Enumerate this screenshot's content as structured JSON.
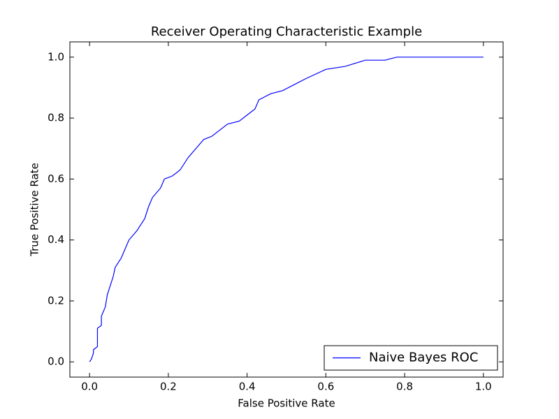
{
  "chart_data": {
    "type": "line",
    "title": "Receiver Operating Characteristic Example",
    "xlabel": "False Positive Rate",
    "ylabel": "True Positive Rate",
    "xlim": [
      -0.05,
      1.05
    ],
    "ylim": [
      -0.05,
      1.05
    ],
    "xticks": [
      {
        "value": 0,
        "label": "0.0"
      },
      0.2,
      0.4,
      0.6,
      0.8,
      {
        "value": 1,
        "label": "1.0"
      }
    ],
    "yticks": [
      {
        "value": 0,
        "label": "0.0"
      },
      0.2,
      0.4,
      0.6,
      0.8,
      {
        "value": 1,
        "label": "1.0"
      }
    ],
    "legend": "lower right",
    "series": [
      {
        "name": "Naive Bayes ROC",
        "color": "#0000ff",
        "x": [
          0,
          0.005,
          0.01,
          0.01,
          0.02,
          0.02,
          0.03,
          0.03,
          0.04,
          0.045,
          0.05,
          0.06,
          0.065,
          0.08,
          0.09,
          0.1,
          0.12,
          0.14,
          0.15,
          0.16,
          0.18,
          0.19,
          0.21,
          0.23,
          0.25,
          0.27,
          0.29,
          0.31,
          0.33,
          0.35,
          0.38,
          0.4,
          0.42,
          0.43,
          0.46,
          0.49,
          0.52,
          0.55,
          0.6,
          0.65,
          0.7,
          0.75,
          0.78,
          1.0
        ],
        "values": [
          0,
          0.01,
          0.03,
          0.04,
          0.05,
          0.11,
          0.12,
          0.15,
          0.18,
          0.22,
          0.24,
          0.28,
          0.31,
          0.34,
          0.37,
          0.4,
          0.43,
          0.47,
          0.51,
          0.54,
          0.57,
          0.6,
          0.61,
          0.63,
          0.67,
          0.7,
          0.73,
          0.74,
          0.76,
          0.78,
          0.79,
          0.81,
          0.83,
          0.86,
          0.88,
          0.89,
          0.91,
          0.93,
          0.96,
          0.97,
          0.99,
          0.99,
          1.0,
          1.0
        ]
      }
    ]
  }
}
